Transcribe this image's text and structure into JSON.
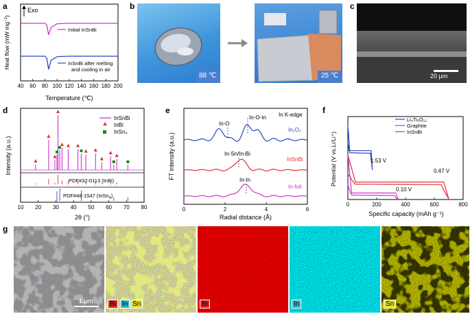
{
  "panel_labels": {
    "a": "a",
    "b": "b",
    "c": "c",
    "d": "d",
    "e": "e",
    "f": "f",
    "g": "g"
  },
  "colors": {
    "pink": "#cc33cc",
    "blue": "#2a44c8",
    "red": "#e0303a",
    "green": "#1a8a1a"
  },
  "panel_a": {
    "ylabel": "Heat flow (mW mg⁻¹)",
    "xlabel": "Temperature (°C)",
    "ylabel_text": "Heat flow (mW mg",
    "ylabel_sup": "−1",
    "ylabel_close": ")",
    "xlabel_text": "Temperature (℃)",
    "xticks": [
      "40",
      "60",
      "80",
      "100",
      "120",
      "140",
      "160",
      "180",
      "200"
    ],
    "exo": "Exo",
    "legend_initial": "Initial InSnBi",
    "legend_melt_1": "InSnBi after melting",
    "legend_melt_2": "and cooling in air"
  },
  "panel_b": {
    "temp_left": "88 ℃",
    "temp_right": "25 ℃"
  },
  "panel_c": {
    "scale": "20 μm"
  },
  "panel_d": {
    "ylabel": "Intensity (a.u.)",
    "xlabel": "2θ (°)",
    "xticks": [
      "10",
      "20",
      "30",
      "40",
      "50",
      "60",
      "70",
      "80"
    ],
    "legend": [
      "InSnBi",
      "InBi",
      "InSn₄"
    ],
    "ref1": "PDF#32-0113 (InBi)",
    "ref2": "PDF#48-1547 (InSn₄)",
    "ref2_text": "PDF#48-1547 (InSn",
    "ref2_sub": "4",
    "ref2_close": ")"
  },
  "panel_e": {
    "ylabel": "FT intensity (a.u.)",
    "xlabel": "Radial distance (Å)",
    "xticks": [
      "0",
      "2",
      "4",
      "6"
    ],
    "edge": "In K-edge",
    "label_in2o3": "In₂O₃",
    "label_insnbi": "InSnBi",
    "label_infoil": "In-foil",
    "ann_ino": "In-O",
    "ann_inoin": "In-O-In",
    "ann_insn": "In-Sn/In-Bi",
    "ann_inin": "In-In"
  },
  "panel_f": {
    "ylabel": "Potential (V vs.Li/Li⁺)",
    "xlabel": "Specific capacity (mAh g⁻¹)",
    "xticks": [
      "0",
      "200",
      "400",
      "600",
      "800"
    ],
    "legend": [
      "Li₄Ti₅O₁₂",
      "Graphite",
      "InSnBi"
    ],
    "v1": "1.53 V",
    "v2": "0.47 V",
    "v3": "0.10 V"
  },
  "panel_g": {
    "scale": "1 μm",
    "labels": {
      "bi": "Bi",
      "in": "In",
      "sn": "Sn"
    }
  },
  "chart_data": [
    {
      "type": "line",
      "panel": "a",
      "title": "",
      "xlabel": "Temperature (℃)",
      "ylabel": "Heat flow (mW mg⁻¹)",
      "xlim": [
        40,
        200
      ],
      "series": [
        {
          "name": "Initial InSnBi",
          "x": [
            40,
            60,
            80,
            83,
            86,
            90,
            100,
            120,
            140,
            160,
            180,
            200
          ],
          "values": [
            1.0,
            1.0,
            1.0,
            0.96,
            0.72,
            0.9,
            0.99,
            1.0,
            1.0,
            1.0,
            1.0,
            1.0
          ]
        },
        {
          "name": "InSnBi after melting and cooling in air",
          "x": [
            40,
            60,
            80,
            83,
            86,
            90,
            100,
            120,
            140,
            160,
            180,
            200
          ],
          "values": [
            0.0,
            0.0,
            0.0,
            -0.05,
            -0.32,
            -0.1,
            -0.01,
            0.0,
            0.0,
            0.0,
            0.0,
            0.0
          ]
        }
      ]
    },
    {
      "type": "bar",
      "panel": "d",
      "xlabel": "2θ (°)",
      "ylabel": "Intensity (a.u.)",
      "xlim": [
        10,
        80
      ],
      "series": [
        {
          "name": "InBi",
          "x": [
            18.5,
            25.9,
            29.4,
            31.2,
            33.5,
            37.0,
            42.5,
            47.0,
            52.5,
            56.0,
            61.0,
            64.5
          ],
          "values": [
            0.1,
            0.55,
            0.18,
            1.0,
            0.4,
            0.38,
            0.38,
            0.28,
            0.3,
            0.14,
            0.25,
            0.2
          ]
        },
        {
          "name": "InSn4",
          "x": [
            30.6,
            32.2,
            44.4,
            62.8,
            70.8
          ],
          "values": [
            0.28,
            0.36,
            0.3,
            0.1,
            0.1
          ]
        }
      ]
    },
    {
      "type": "line",
      "panel": "e",
      "xlabel": "Radial distance (Å)",
      "ylabel": "FT intensity (a.u.)",
      "xlim": [
        0,
        6
      ],
      "series": [
        {
          "name": "In2O3",
          "peaks": [
            1.75,
            3.1,
            3.55
          ]
        },
        {
          "name": "InSnBi",
          "peaks": [
            2.75
          ]
        },
        {
          "name": "In-foil",
          "peaks": [
            3.0
          ]
        }
      ]
    },
    {
      "type": "line",
      "panel": "f",
      "xlabel": "Specific capacity (mAh g⁻¹)",
      "ylabel": "Potential (V vs.Li/Li⁺)",
      "xlim": [
        0,
        800
      ],
      "series": [
        {
          "name": "Li4Ti5O12",
          "plateau_V": 1.53,
          "capacity": 170
        },
        {
          "name": "Graphite",
          "plateau_V": 0.1,
          "capacity": 350
        },
        {
          "name": "InSnBi",
          "plateau_V": 0.47,
          "capacity": 700
        }
      ]
    }
  ]
}
